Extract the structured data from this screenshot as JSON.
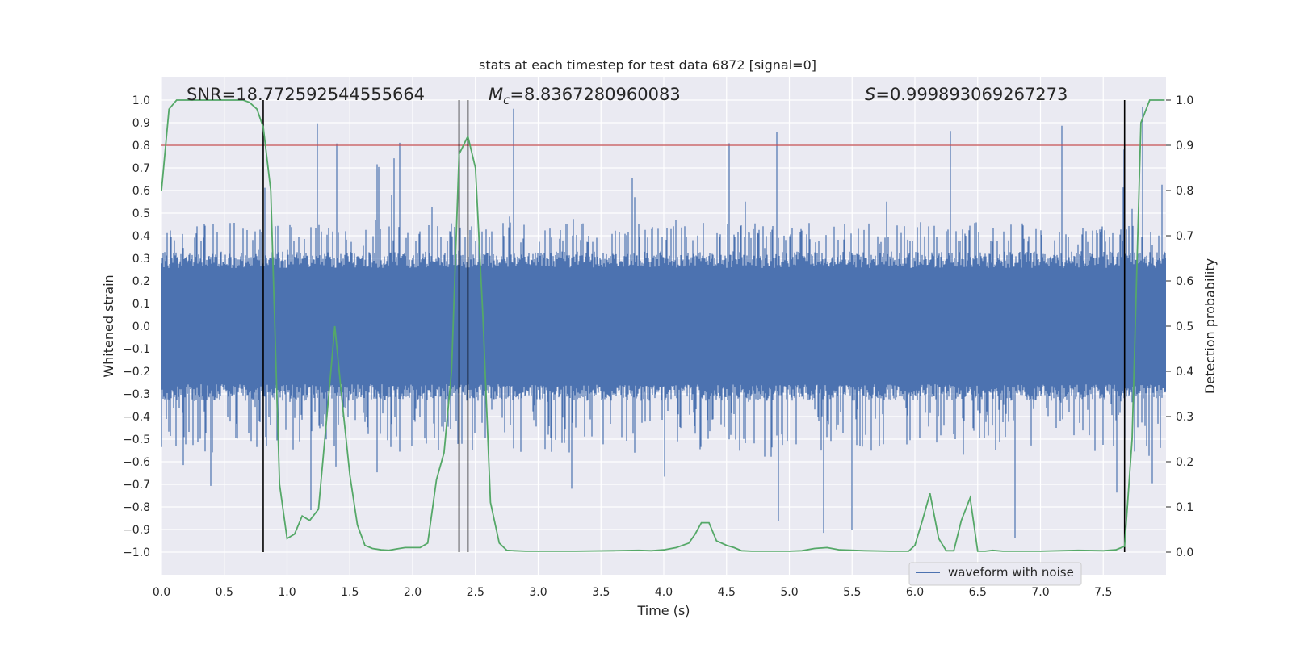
{
  "chart_data": {
    "type": "line",
    "title": "stats at each timestep for test data 6872 [signal=0]",
    "xlabel": "Time (s)",
    "ylabel_left": "Whitened strain",
    "ylabel_right": "Detection probability",
    "xlim": [
      0,
      8
    ],
    "ylim_left": [
      -1.1,
      1.1
    ],
    "ylim_right": [
      -0.05,
      1.05
    ],
    "x_ticks": [
      0.0,
      0.5,
      1.0,
      1.5,
      2.0,
      2.5,
      3.0,
      3.5,
      4.0,
      4.5,
      5.0,
      5.5,
      6.0,
      6.5,
      7.0,
      7.5
    ],
    "x_tick_labels": [
      "0.0",
      "0.5",
      "1.0",
      "1.5",
      "2.0",
      "2.5",
      "3.0",
      "3.5",
      "4.0",
      "4.5",
      "5.0",
      "5.5",
      "6.0",
      "6.5",
      "7.0",
      "7.5"
    ],
    "y_left_ticks": [
      -1.0,
      -0.9,
      -0.8,
      -0.7,
      -0.6,
      -0.5,
      -0.4,
      -0.3,
      -0.2,
      -0.1,
      0.0,
      0.1,
      0.2,
      0.3,
      0.4,
      0.5,
      0.6,
      0.7,
      0.8,
      0.9,
      1.0
    ],
    "y_left_tick_labels": [
      "−1.0",
      "−0.9",
      "−0.8",
      "−0.7",
      "−0.6",
      "−0.5",
      "−0.4",
      "−0.3",
      "−0.2",
      "−0.1",
      "0.0",
      "0.1",
      "0.2",
      "0.3",
      "0.4",
      "0.5",
      "0.6",
      "0.7",
      "0.8",
      "0.9",
      "1.0"
    ],
    "y_right_ticks": [
      0.0,
      0.1,
      0.2,
      0.3,
      0.4,
      0.5,
      0.6,
      0.7,
      0.8,
      0.9,
      1.0
    ],
    "y_right_tick_labels": [
      "0.0",
      "0.1",
      "0.2",
      "0.3",
      "0.4",
      "0.5",
      "0.6",
      "0.7",
      "0.8",
      "0.9",
      "1.0"
    ],
    "grid": true,
    "legend": {
      "entries": [
        "waveform with noise"
      ],
      "placement": "lower-right"
    },
    "annotations": {
      "snr": "SNR=18.772592544555664",
      "mc_symbol": "M",
      "mc_subscript": "c",
      "mc_value": "=8.8367280960083",
      "s_symbol": "S",
      "s_value": "=0.999893069267273"
    },
    "threshold": {
      "axis": "right",
      "value": 0.9,
      "color": "#c44e52"
    },
    "vertical_lines": [
      0.81,
      2.37,
      2.44,
      7.67
    ],
    "waveform": {
      "name": "waveform with noise",
      "color": "#4c72b0",
      "envelope": 0.33,
      "peak_range": [
        -0.99,
        0.99
      ]
    },
    "probability": {
      "axis": "right",
      "color": "#55a868",
      "x": [
        0.0,
        0.06,
        0.12,
        0.2,
        0.3,
        0.4,
        0.5,
        0.6,
        0.65,
        0.7,
        0.76,
        0.81,
        0.87,
        0.94,
        1.0,
        1.06,
        1.12,
        1.18,
        1.25,
        1.33,
        1.38,
        1.44,
        1.5,
        1.56,
        1.62,
        1.68,
        1.75,
        1.81,
        1.87,
        1.94,
        2.0,
        2.06,
        2.12,
        2.19,
        2.25,
        2.31,
        2.37,
        2.44,
        2.5,
        2.56,
        2.62,
        2.69,
        2.75,
        2.81,
        2.9,
        3.0,
        3.3,
        3.6,
        3.8,
        3.9,
        4.0,
        4.1,
        4.2,
        4.25,
        4.3,
        4.36,
        4.42,
        4.5,
        4.56,
        4.62,
        4.7,
        5.0,
        5.1,
        5.2,
        5.3,
        5.4,
        5.6,
        5.8,
        5.95,
        6.0,
        6.06,
        6.12,
        6.19,
        6.25,
        6.31,
        6.37,
        6.44,
        6.5,
        6.56,
        6.62,
        6.7,
        7.0,
        7.3,
        7.5,
        7.6,
        7.67,
        7.73,
        7.8,
        7.87,
        7.99
      ],
      "y": [
        0.8,
        0.98,
        1.0,
        1.0,
        1.0,
        1.0,
        1.0,
        1.0,
        1.0,
        0.995,
        0.98,
        0.94,
        0.8,
        0.15,
        0.03,
        0.04,
        0.08,
        0.07,
        0.095,
        0.34,
        0.5,
        0.33,
        0.17,
        0.06,
        0.015,
        0.008,
        0.005,
        0.004,
        0.007,
        0.01,
        0.01,
        0.01,
        0.02,
        0.16,
        0.22,
        0.4,
        0.88,
        0.92,
        0.85,
        0.52,
        0.11,
        0.02,
        0.004,
        0.003,
        0.002,
        0.002,
        0.002,
        0.003,
        0.004,
        0.003,
        0.005,
        0.01,
        0.02,
        0.04,
        0.065,
        0.065,
        0.025,
        0.015,
        0.01,
        0.003,
        0.002,
        0.002,
        0.003,
        0.008,
        0.01,
        0.005,
        0.003,
        0.002,
        0.002,
        0.015,
        0.07,
        0.13,
        0.03,
        0.003,
        0.003,
        0.07,
        0.12,
        0.002,
        0.002,
        0.004,
        0.002,
        0.002,
        0.004,
        0.003,
        0.005,
        0.013,
        0.25,
        0.95,
        1.0,
        1.0
      ]
    }
  }
}
